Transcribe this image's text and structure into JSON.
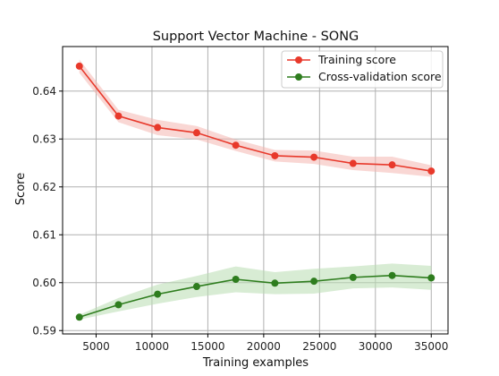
{
  "chart_data": {
    "type": "line",
    "title": "Support Vector Machine - SONG",
    "xlabel": "Training examples",
    "ylabel": "Score",
    "xlim": [
      2000,
      36500
    ],
    "ylim": [
      0.5893,
      0.6493
    ],
    "xticks": [
      5000,
      10000,
      15000,
      20000,
      25000,
      30000,
      35000
    ],
    "yticks": [
      0.59,
      0.6,
      0.61,
      0.62,
      0.63,
      0.64
    ],
    "ytick_labels": [
      "0.59",
      "0.60",
      "0.61",
      "0.62",
      "0.63",
      "0.64"
    ],
    "grid": true,
    "legend_position": "top-right",
    "x": [
      3500,
      7000,
      10500,
      14000,
      17500,
      21000,
      24500,
      28000,
      31500,
      35000
    ],
    "series": [
      {
        "name": "Training score",
        "color": "#e8392b",
        "band_color": "#f4b6b0",
        "values": [
          0.6452,
          0.6348,
          0.6324,
          0.6313,
          0.6287,
          0.6265,
          0.6262,
          0.6249,
          0.6246,
          0.6233
        ],
        "band": [
          [
            0.6438,
            0.6466
          ],
          [
            0.6335,
            0.6361
          ],
          [
            0.6308,
            0.634
          ],
          [
            0.6299,
            0.6327
          ],
          [
            0.6275,
            0.6299
          ],
          [
            0.6253,
            0.6277
          ],
          [
            0.6248,
            0.6276
          ],
          [
            0.6235,
            0.6263
          ],
          [
            0.6229,
            0.6263
          ],
          [
            0.6221,
            0.6245
          ]
        ]
      },
      {
        "name": "Cross-validation score",
        "color": "#2e7d1e",
        "band_color": "#b8dcb0",
        "values": [
          0.5928,
          0.5954,
          0.5976,
          0.5992,
          0.6007,
          0.5999,
          0.6003,
          0.6011,
          0.6015,
          0.601
        ],
        "band": [
          [
            0.5923,
            0.5933
          ],
          [
            0.594,
            0.5968
          ],
          [
            0.5956,
            0.5996
          ],
          [
            0.597,
            0.6014
          ],
          [
            0.598,
            0.6034
          ],
          [
            0.5976,
            0.6022
          ],
          [
            0.5977,
            0.6029
          ],
          [
            0.5988,
            0.6034
          ],
          [
            0.599,
            0.604
          ],
          [
            0.5985,
            0.6035
          ]
        ]
      }
    ]
  }
}
